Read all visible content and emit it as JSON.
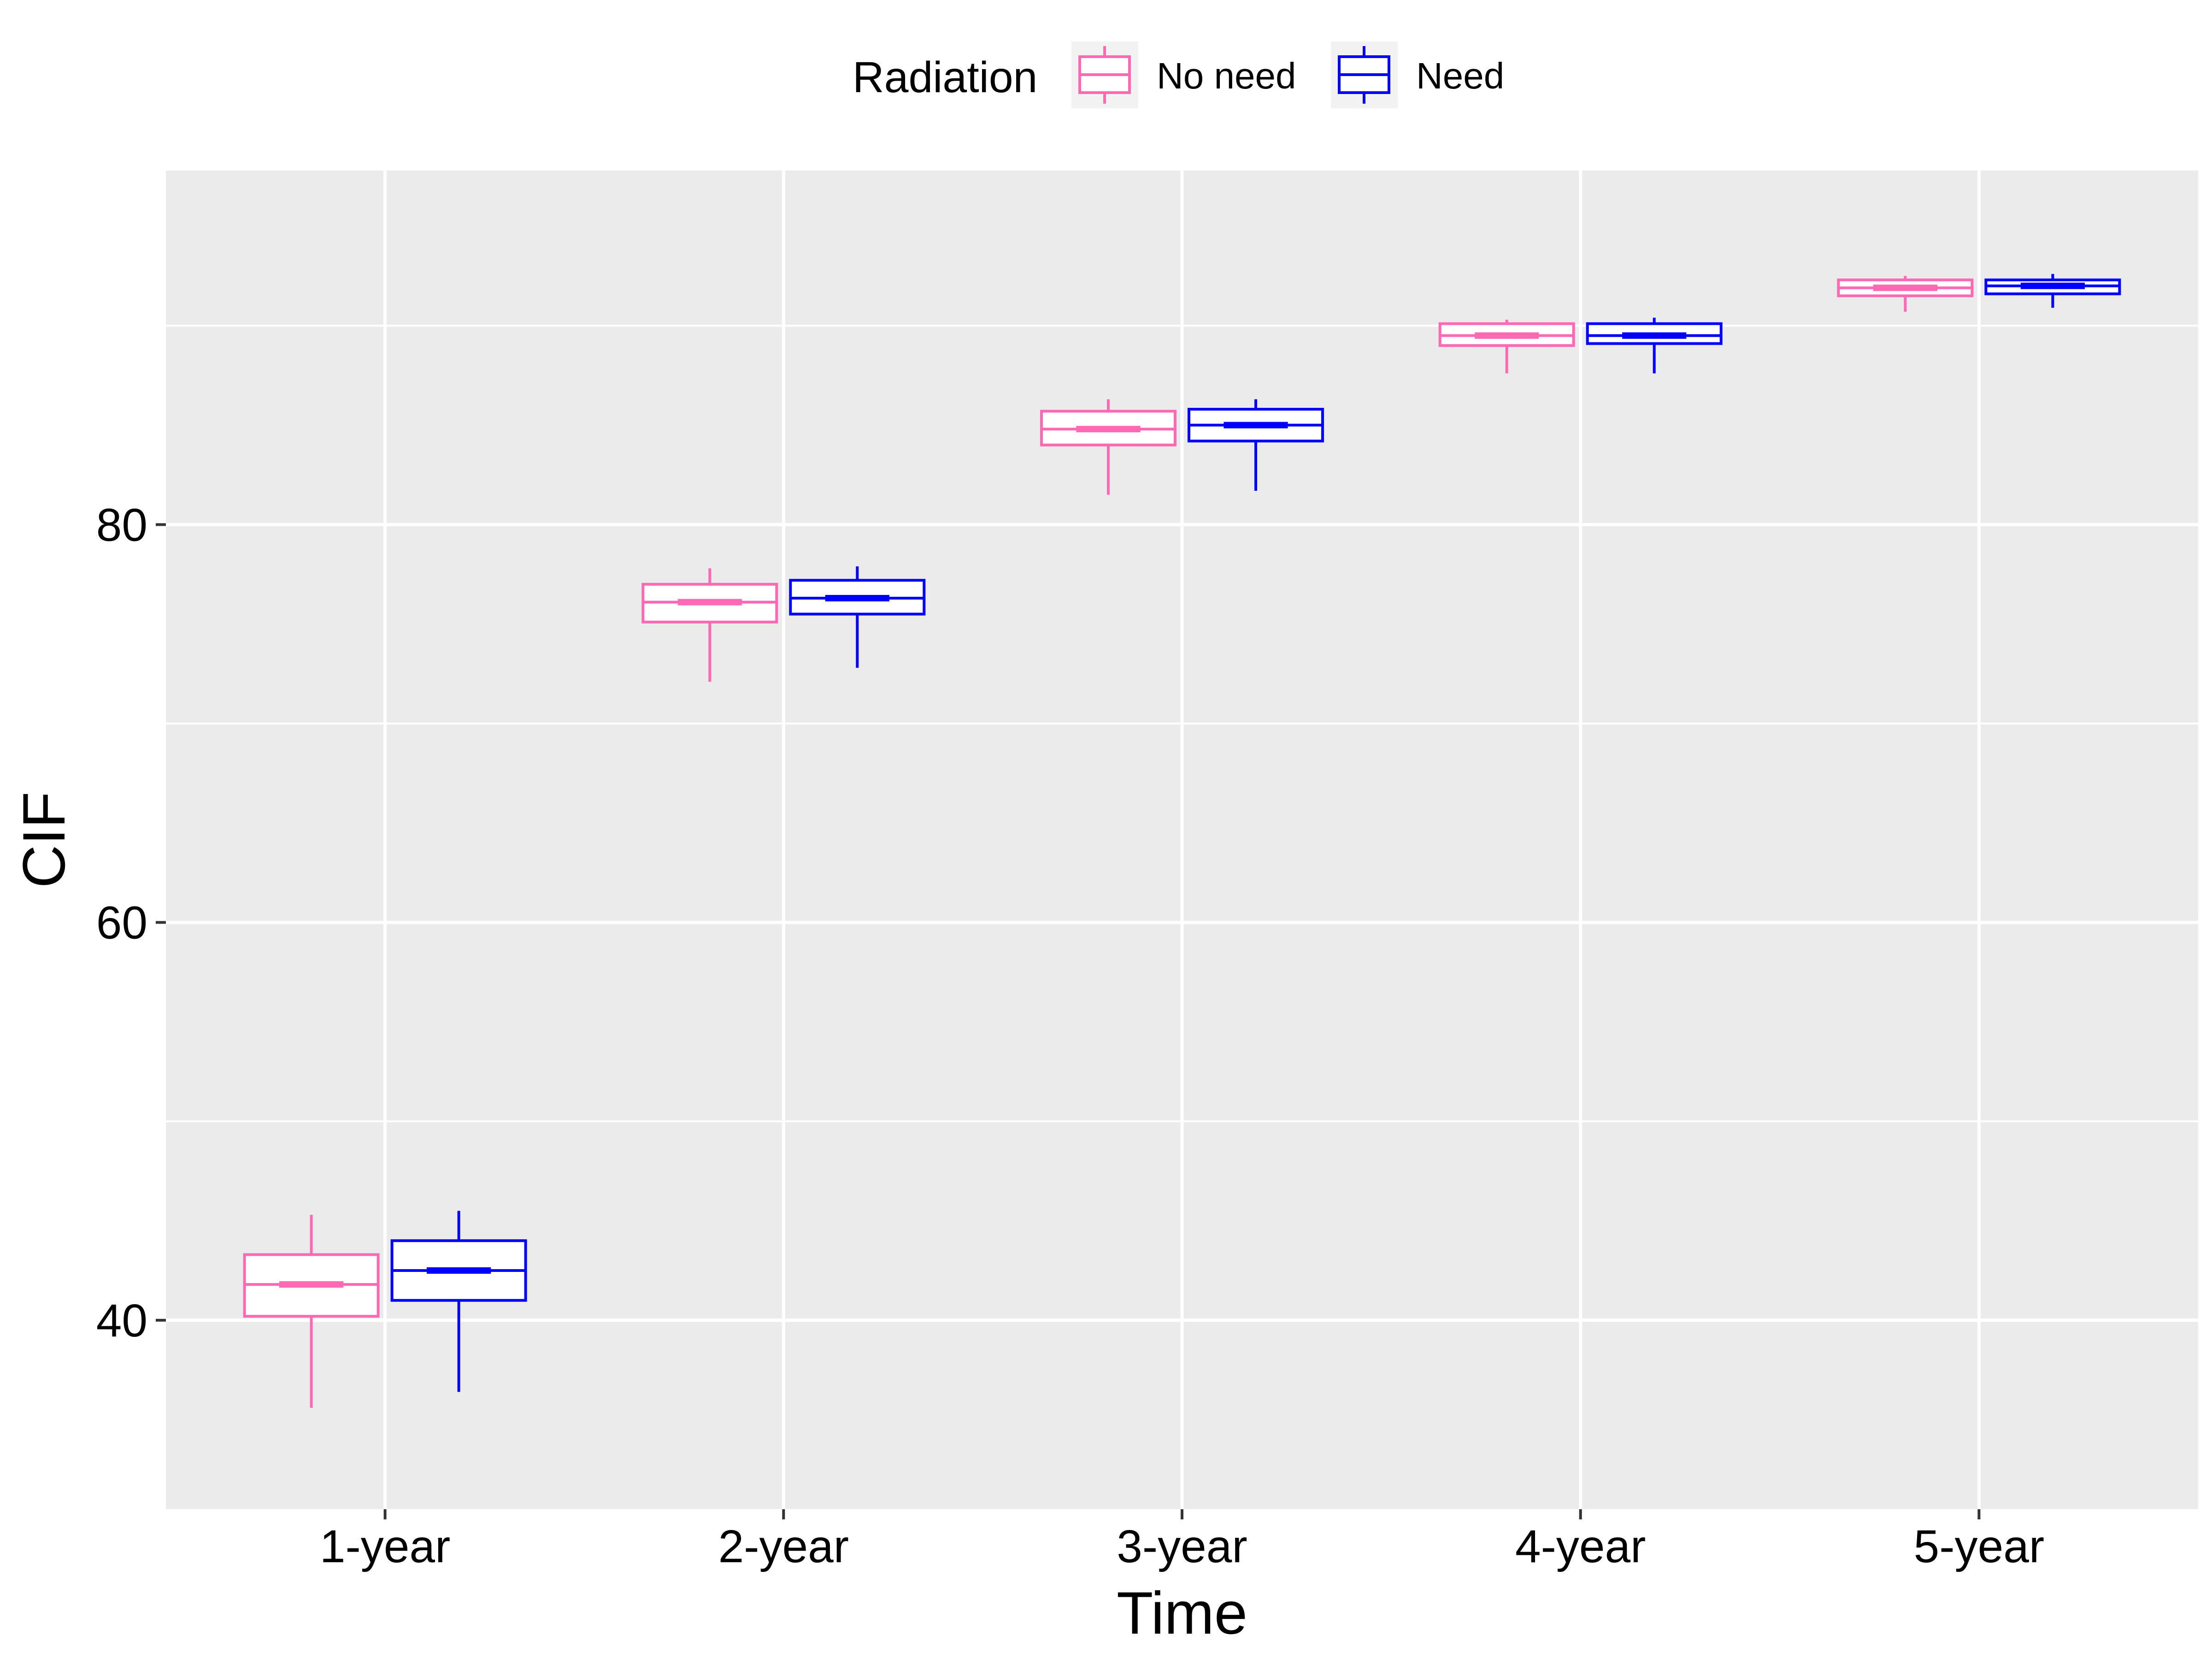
{
  "chart_data": {
    "type": "boxplot",
    "xlabel": "Time",
    "ylabel": "CIF",
    "categories": [
      "1-year",
      "2-year",
      "3-year",
      "4-year",
      "5-year"
    ],
    "yticks": [
      40,
      60,
      80
    ],
    "ylim": [
      30.5,
      97.8
    ],
    "grid": true,
    "legend": {
      "title": "Radiation",
      "position": "top"
    },
    "series": [
      {
        "name": "No need",
        "color": "#ff69b4",
        "boxes": [
          {
            "min": 35.6,
            "q1": 40.2,
            "median": 41.8,
            "q3": 43.3,
            "max": 45.3
          },
          {
            "min": 72.1,
            "q1": 75.1,
            "median": 76.1,
            "q3": 77.0,
            "max": 77.8
          },
          {
            "min": 81.5,
            "q1": 84.0,
            "median": 84.8,
            "q3": 85.7,
            "max": 86.3
          },
          {
            "min": 87.6,
            "q1": 89.0,
            "median": 89.5,
            "q3": 90.1,
            "max": 90.3
          },
          {
            "min": 90.7,
            "q1": 91.5,
            "median": 91.9,
            "q3": 92.3,
            "max": 92.5
          }
        ]
      },
      {
        "name": "Need",
        "color": "#0000ff",
        "boxes": [
          {
            "min": 36.4,
            "q1": 41.0,
            "median": 42.5,
            "q3": 44.0,
            "max": 45.5
          },
          {
            "min": 72.8,
            "q1": 75.5,
            "median": 76.3,
            "q3": 77.2,
            "max": 77.9
          },
          {
            "min": 81.7,
            "q1": 84.2,
            "median": 85.0,
            "q3": 85.8,
            "max": 86.3
          },
          {
            "min": 87.6,
            "q1": 89.1,
            "median": 89.5,
            "q3": 90.1,
            "max": 90.4
          },
          {
            "min": 90.9,
            "q1": 91.6,
            "median": 92.0,
            "q3": 92.3,
            "max": 92.6
          }
        ]
      }
    ]
  }
}
